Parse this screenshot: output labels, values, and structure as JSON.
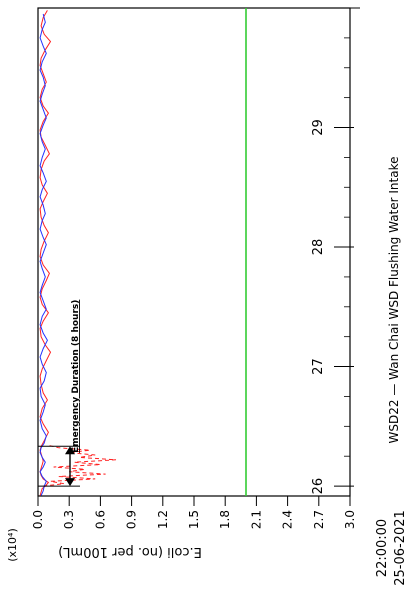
{
  "chart_data": {
    "type": "line",
    "title": "WSD22 — Wan Chai WSD Flushing Water Intake",
    "ylabel": "E.coli (no. per 100mL)",
    "y_multiplier": "(x10⁴)",
    "ylim": [
      0,
      3.0
    ],
    "y_ticks": [
      "0.0",
      "0.3",
      "0.6",
      "0.9",
      "1.2",
      "1.5",
      "1.8",
      "2.1",
      "2.4",
      "2.7",
      "3.0"
    ],
    "x_start": "22:00:00",
    "x_start_date": "25-06-2021",
    "x_ticks": [
      "26",
      "27",
      "28",
      "29"
    ],
    "xlim_days": [
      25.917,
      30.0
    ],
    "reference_line": {
      "value": 2.0,
      "color": "#33cc33"
    },
    "annotation": "Emergency Duration (8 hours)",
    "emergency_window_days": [
      26.0,
      26.333
    ],
    "series": [
      {
        "color": "#ff2222",
        "style": "solid",
        "x": [
          25.92,
          25.95,
          25.98,
          26.0,
          26.03,
          26.06,
          26.09,
          26.12,
          26.15,
          26.18,
          26.21,
          26.24,
          26.27,
          26.3,
          26.33,
          26.38,
          26.45,
          26.52,
          26.58,
          26.65,
          26.72,
          26.78,
          26.85,
          26.92,
          26.98,
          27.05,
          27.12,
          27.18,
          27.25,
          27.32,
          27.38,
          27.45,
          27.52,
          27.58,
          27.65,
          27.72,
          27.78,
          27.85,
          27.92,
          27.98,
          28.05,
          28.12,
          28.18,
          28.25,
          28.32,
          28.38,
          28.45,
          28.52,
          28.58,
          28.65,
          28.72,
          28.78,
          28.85,
          28.92,
          28.98,
          29.05,
          29.12,
          29.18,
          29.25,
          29.32,
          29.38,
          29.45,
          29.52,
          29.58,
          29.65,
          29.72,
          29.78,
          29.85,
          29.92,
          29.98
        ],
        "values": [
          0.02,
          0.03,
          0.04,
          0.07,
          0.1,
          0.05,
          0.03,
          0.02,
          0.03,
          0.04,
          0.05,
          0.04,
          0.03,
          0.02,
          0.03,
          0.06,
          0.1,
          0.05,
          0.02,
          0.04,
          0.09,
          0.05,
          0.03,
          0.02,
          0.04,
          0.08,
          0.12,
          0.07,
          0.03,
          0.02,
          0.05,
          0.1,
          0.04,
          0.02,
          0.04,
          0.08,
          0.11,
          0.05,
          0.02,
          0.03,
          0.06,
          0.1,
          0.06,
          0.03,
          0.02,
          0.05,
          0.09,
          0.04,
          0.02,
          0.03,
          0.06,
          0.11,
          0.07,
          0.03,
          0.02,
          0.05,
          0.1,
          0.05,
          0.02,
          0.04,
          0.08,
          0.05,
          0.02,
          0.03,
          0.07,
          0.12,
          0.06,
          0.03,
          0.05,
          0.09
        ]
      },
      {
        "color": "#ff2222",
        "style": "dashed",
        "x": [
          26.0,
          26.02,
          26.04,
          26.06,
          26.08,
          26.1,
          26.12,
          26.14,
          26.16,
          26.18,
          26.2,
          26.22,
          26.24,
          26.26,
          26.28,
          26.3,
          26.32,
          26.34
        ],
        "values": [
          0.05,
          0.25,
          0.12,
          0.55,
          0.2,
          0.65,
          0.3,
          0.45,
          0.15,
          0.6,
          0.35,
          0.75,
          0.4,
          0.55,
          0.3,
          0.5,
          0.2,
          0.1
        ]
      },
      {
        "color": "#2233ff",
        "style": "solid",
        "x": [
          25.92,
          25.96,
          26.0,
          26.04,
          26.08,
          26.12,
          26.16,
          26.2,
          26.24,
          26.28,
          26.32,
          26.36,
          26.42,
          26.48,
          26.55,
          26.62,
          26.68,
          26.75,
          26.82,
          26.88,
          26.95,
          27.02,
          27.08,
          27.15,
          27.22,
          27.28,
          27.35,
          27.42,
          27.48,
          27.55,
          27.62,
          27.68,
          27.75,
          27.82,
          27.88,
          27.95,
          28.02,
          28.08,
          28.15,
          28.22,
          28.28,
          28.35,
          28.42,
          28.48,
          28.55,
          28.62,
          28.68,
          28.75,
          28.82,
          28.88,
          28.95,
          29.02,
          29.08,
          29.15,
          29.22,
          29.28,
          29.35,
          29.42,
          29.48,
          29.55,
          29.62,
          29.68,
          29.75,
          29.82,
          29.88,
          29.95
        ],
        "values": [
          0.03,
          0.05,
          0.06,
          0.08,
          0.04,
          0.02,
          0.05,
          0.07,
          0.04,
          0.02,
          0.03,
          0.06,
          0.08,
          0.04,
          0.02,
          0.05,
          0.07,
          0.03,
          0.02,
          0.06,
          0.08,
          0.04,
          0.02,
          0.05,
          0.09,
          0.05,
          0.02,
          0.04,
          0.08,
          0.05,
          0.02,
          0.04,
          0.07,
          0.04,
          0.02,
          0.05,
          0.08,
          0.05,
          0.02,
          0.04,
          0.07,
          0.05,
          0.02,
          0.04,
          0.08,
          0.05,
          0.02,
          0.04,
          0.07,
          0.04,
          0.02,
          0.05,
          0.08,
          0.05,
          0.02,
          0.04,
          0.07,
          0.05,
          0.02,
          0.04,
          0.08,
          0.05,
          0.02,
          0.04,
          0.07,
          0.05
        ]
      }
    ]
  }
}
